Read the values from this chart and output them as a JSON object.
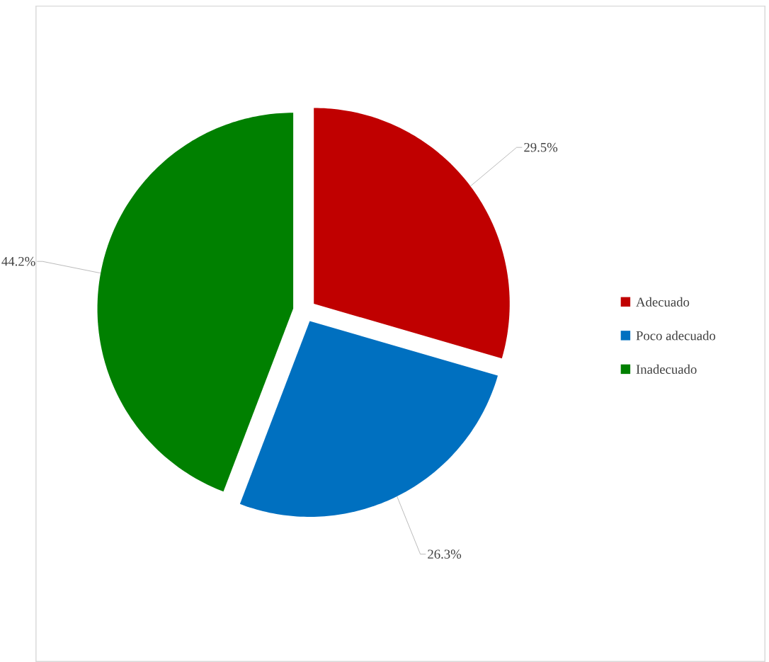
{
  "chart_data": {
    "type": "pie",
    "categories": [
      "Adecuado",
      "Poco adecuado",
      "Inadecuado"
    ],
    "values": [
      29.5,
      26.3,
      44.2
    ],
    "colors": [
      "#c00000",
      "#0070c0",
      "#008000"
    ],
    "value_labels": [
      "29.5%",
      "26.3%",
      "44.2%"
    ],
    "legend": "right"
  }
}
